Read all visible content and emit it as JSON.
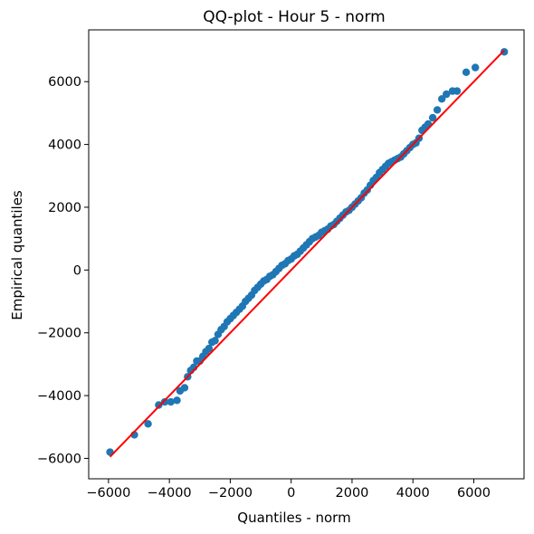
{
  "chart_data": {
    "type": "scatter",
    "title": "QQ-plot - Hour 5 - norm",
    "xlabel": "Quantiles - norm",
    "ylabel": "Empirical quantiles",
    "xlim": [
      -6650,
      7650
    ],
    "ylim": [
      -6650,
      7650
    ],
    "xticks": [
      -6000,
      -4000,
      -2000,
      0,
      2000,
      4000,
      6000
    ],
    "yticks": [
      -6000,
      -4000,
      -2000,
      0,
      2000,
      4000,
      6000
    ],
    "tick_labels": [
      "−6000",
      "−4000",
      "−2000",
      "0",
      "2000",
      "4000",
      "6000"
    ],
    "grid": false,
    "legend": "none",
    "colors": {
      "points": "#1f77b4",
      "reference_line": "#ff0000"
    },
    "reference_line": {
      "x": [
        -5950,
        7000
      ],
      "y": [
        -5950,
        7000
      ]
    },
    "points": {
      "x": [
        -5950,
        -5150,
        -4700,
        -4350,
        -4150,
        -3950,
        -3750,
        -3650,
        -3500,
        -3400,
        -3300,
        -3200,
        -3100,
        -3000,
        -2900,
        -2800,
        -2700,
        -2600,
        -2500,
        -2400,
        -2300,
        -2200,
        -2100,
        -2000,
        -1900,
        -1800,
        -1700,
        -1600,
        -1500,
        -1400,
        -1300,
        -1200,
        -1100,
        -1000,
        -900,
        -800,
        -700,
        -600,
        -500,
        -400,
        -300,
        -200,
        -100,
        0,
        100,
        200,
        300,
        400,
        500,
        600,
        700,
        800,
        900,
        1000,
        1100,
        1200,
        1300,
        1400,
        1500,
        1600,
        1700,
        1800,
        1900,
        2000,
        2100,
        2200,
        2300,
        2400,
        2500,
        2600,
        2700,
        2800,
        2900,
        3000,
        3100,
        3200,
        3300,
        3400,
        3500,
        3600,
        3700,
        3800,
        3900,
        4000,
        4100,
        4200,
        4300,
        4400,
        4500,
        4650,
        4800,
        4950,
        5100,
        5300,
        5450,
        5750,
        6050,
        7000
      ],
      "y": [
        -5800,
        -5250,
        -4900,
        -4300,
        -4200,
        -4200,
        -4150,
        -3850,
        -3750,
        -3400,
        -3200,
        -3100,
        -2900,
        -2900,
        -2750,
        -2600,
        -2500,
        -2300,
        -2250,
        -2050,
        -1900,
        -1800,
        -1650,
        -1550,
        -1450,
        -1350,
        -1250,
        -1150,
        -1000,
        -900,
        -800,
        -650,
        -550,
        -450,
        -350,
        -300,
        -200,
        -150,
        -50,
        50,
        150,
        200,
        300,
        350,
        450,
        500,
        600,
        700,
        800,
        900,
        1000,
        1050,
        1100,
        1200,
        1250,
        1300,
        1400,
        1450,
        1550,
        1650,
        1750,
        1850,
        1900,
        2000,
        2100,
        2200,
        2300,
        2450,
        2550,
        2700,
        2850,
        2950,
        3100,
        3200,
        3300,
        3400,
        3450,
        3500,
        3550,
        3600,
        3700,
        3800,
        3900,
        4000,
        4050,
        4200,
        4450,
        4550,
        4650,
        4850,
        5100,
        5450,
        5600,
        5700,
        5700,
        6300,
        6450,
        6950
      ]
    }
  }
}
